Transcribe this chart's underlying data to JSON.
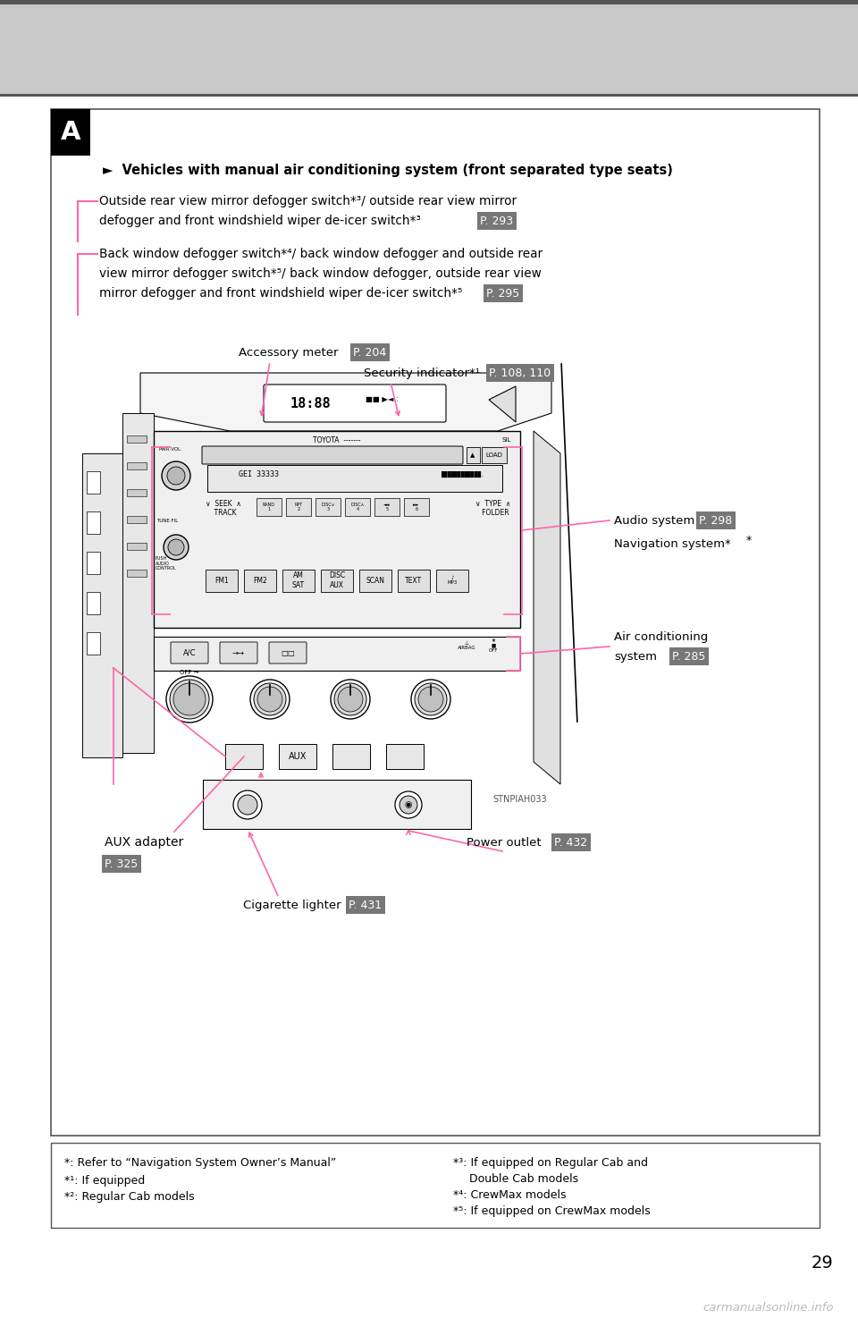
{
  "page_bg": "#ffffff",
  "header_bg": "#c8c8c8",
  "page_num": "29",
  "watermark": "carmanualsonline.info",
  "A_label": "A",
  "section_title": "►  Vehicles with manual air conditioning system (front separated type seats)",
  "label1_line1": "Outside rear view mirror defogger switch*³/ outside rear view mirror",
  "label1_line2": "defogger and front windshield wiper de-icer switch*³",
  "label1_page": "P. 293",
  "label2_line1": "Back window defogger switch*⁴/ back window defogger and outside rear",
  "label2_line2": "view mirror defogger switch*⁵/ back window defogger, outside rear view",
  "label2_line3": "mirror defogger and front windshield wiper de-icer switch*⁵",
  "label2_page": "P. 295",
  "acc_meter_label": "Accessory meter",
  "acc_meter_page": "P. 204",
  "security_label": "Security indicator*¹",
  "security_page": "P. 108, 110",
  "audio_label": "Audio system",
  "audio_page": "P. 298",
  "nav_label": "Navigation system*",
  "air_label": "Air conditioning",
  "air_label2": "system",
  "air_page": "P. 285",
  "aux_label": "AUX adapter",
  "aux_page": "P. 325",
  "power_label": "Power outlet",
  "power_page": "P. 432",
  "cig_label": "Cigarette lighter",
  "cig_page": "P. 431",
  "img_credit": "STNPIAH033",
  "footnote1": "*: Refer to “Navigation System Owner’s Manual”",
  "footnote2": "*¹: If equipped",
  "footnote3": "*²: Regular Cab models",
  "footnote4_line1": "*³: If equipped on Regular Cab and",
  "footnote4_line2": "     Double Cab models",
  "footnote5": "*⁴: CrewMax models",
  "footnote6": "*⁵: If equipped on CrewMax models",
  "pink": "#ff66aa",
  "badge_bg": "#777777",
  "badge_fg": "#ffffff",
  "line_color": "#000000"
}
